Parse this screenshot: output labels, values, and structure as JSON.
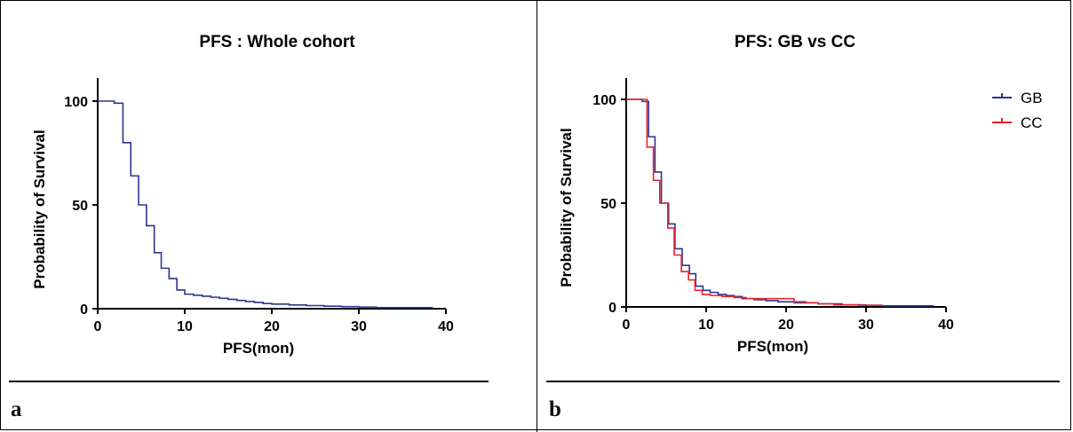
{
  "panels": [
    {
      "letter": "a"
    },
    {
      "letter": "b"
    }
  ],
  "chart_data": [
    {
      "type": "line",
      "title": "PFS : Whole cohort",
      "xlabel": "PFS(mon)",
      "ylabel": "Probability of Survival",
      "xlim": [
        0,
        40
      ],
      "ylim": [
        0,
        100
      ],
      "xticks": [
        0,
        10,
        20,
        30,
        40
      ],
      "yticks": [
        0,
        50,
        100
      ],
      "step": true,
      "grid": false,
      "series": [
        {
          "color": "#2b3590",
          "x": [
            0,
            1.9,
            2.9,
            3.8,
            4.7,
            5.6,
            6.5,
            7.3,
            8.2,
            9.1,
            10,
            11,
            12,
            13,
            14,
            15,
            16,
            17,
            18,
            19,
            20,
            22,
            24,
            26,
            28,
            30,
            32,
            38.5
          ],
          "y": [
            100,
            99,
            80,
            64,
            50,
            40,
            27,
            19.5,
            14.5,
            9,
            7,
            6.5,
            6,
            5.5,
            5,
            4.5,
            4,
            3.5,
            3,
            2.5,
            2.2,
            1.8,
            1.5,
            1.2,
            1,
            0.8,
            0.5,
            0.5
          ]
        }
      ]
    },
    {
      "type": "line",
      "title": "PFS: GB vs CC",
      "xlabel": "PFS(mon)",
      "ylabel": "Probability of Survival",
      "xlim": [
        0,
        40
      ],
      "ylim": [
        0,
        100
      ],
      "xticks": [
        0,
        10,
        20,
        30,
        40
      ],
      "yticks": [
        0,
        50,
        100
      ],
      "step": true,
      "grid": false,
      "legend": "top-right",
      "series": [
        {
          "name": "GB",
          "color": "#2b3590",
          "x": [
            0,
            2,
            2.8,
            3.6,
            4.4,
            5.3,
            6.1,
            7,
            7.9,
            8.7,
            9.6,
            10.5,
            11.5,
            12.5,
            13.5,
            14.5,
            16,
            17.5,
            19,
            21,
            24,
            27,
            30,
            32,
            38.5
          ],
          "y": [
            100,
            99,
            82,
            65,
            50,
            40,
            28,
            20,
            16,
            10,
            8,
            7,
            6,
            5.5,
            5,
            4,
            3.5,
            3,
            2.5,
            2,
            1.5,
            1,
            0.8,
            0.5,
            0.5
          ]
        },
        {
          "name": "CC",
          "color": "#e8222e",
          "x": [
            0,
            2,
            2.6,
            3.4,
            4.2,
            5.2,
            6,
            6.9,
            7.8,
            8.6,
            9.5,
            10.5,
            12,
            13.5,
            15,
            17,
            19,
            21,
            22.5,
            24,
            26,
            29,
            32
          ],
          "y": [
            100,
            100,
            77,
            61,
            50,
            38,
            25,
            17,
            13,
            8,
            6,
            5.5,
            5,
            4.5,
            4,
            4,
            4,
            2.5,
            2,
            1.5,
            1,
            0.8,
            0.5
          ]
        }
      ]
    }
  ]
}
